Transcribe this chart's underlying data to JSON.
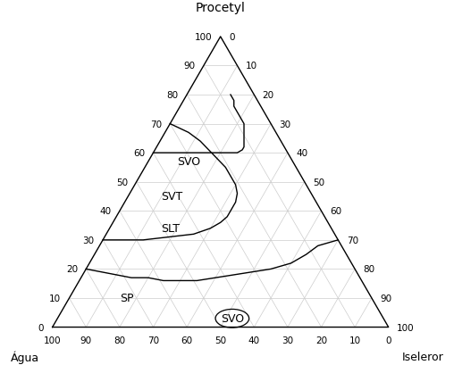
{
  "label_top": "Procetyl",
  "label_left": "Água",
  "label_right": "Iseleror",
  "grid_color": "#cccccc",
  "fontsize_ticks": 7.5,
  "fontsize_region": 9,
  "fontsize_axlabel": 9,
  "fontsize_title": 10,
  "curve_SLT_SVT": [
    [
      30,
      70,
      0
    ],
    [
      30,
      65,
      5
    ],
    [
      30,
      58,
      12
    ],
    [
      31,
      50,
      19
    ],
    [
      32,
      42,
      26
    ],
    [
      34,
      36,
      30
    ],
    [
      36,
      32,
      32
    ],
    [
      38,
      29,
      33
    ],
    [
      40,
      27,
      33
    ],
    [
      43,
      24,
      33
    ],
    [
      46,
      22,
      32
    ],
    [
      49,
      21,
      30
    ],
    [
      52,
      21,
      27
    ],
    [
      55,
      21,
      24
    ],
    [
      58,
      22,
      20
    ],
    [
      61,
      23,
      16
    ],
    [
      64,
      24,
      12
    ],
    [
      67,
      26,
      7
    ],
    [
      70,
      30,
      0
    ]
  ],
  "curve_SVT_SVO": [
    [
      60,
      40,
      0
    ],
    [
      60,
      36,
      4
    ],
    [
      60,
      32,
      8
    ],
    [
      60,
      27,
      13
    ],
    [
      60,
      23,
      17
    ],
    [
      60,
      20,
      20
    ],
    [
      60,
      18,
      22
    ],
    [
      60,
      16,
      24
    ],
    [
      60,
      15,
      25
    ],
    [
      61,
      13,
      26
    ],
    [
      62,
      12,
      26
    ],
    [
      64,
      11,
      25
    ],
    [
      66,
      10,
      24
    ],
    [
      68,
      9,
      23
    ],
    [
      70,
      8,
      22
    ],
    [
      72,
      8,
      20
    ],
    [
      74,
      8,
      18
    ],
    [
      76,
      8,
      16
    ],
    [
      78,
      7,
      15
    ],
    [
      80,
      7,
      13
    ]
  ],
  "curve_SVO_SP": [
    [
      20,
      80,
      0
    ],
    [
      19,
      76,
      5
    ],
    [
      18,
      72,
      10
    ],
    [
      17,
      68,
      15
    ],
    [
      17,
      63,
      20
    ],
    [
      16,
      59,
      25
    ],
    [
      16,
      54,
      30
    ],
    [
      16,
      49,
      35
    ],
    [
      17,
      43,
      40
    ],
    [
      18,
      37,
      45
    ],
    [
      19,
      31,
      50
    ],
    [
      20,
      25,
      55
    ],
    [
      22,
      18,
      60
    ],
    [
      25,
      12,
      63
    ],
    [
      28,
      7,
      65
    ],
    [
      30,
      0,
      70
    ]
  ],
  "label_SLT_abc": [
    34,
    48,
    18
  ],
  "label_SVT_abc": [
    45,
    42,
    13
  ],
  "label_SVO_abc": [
    57,
    31,
    12
  ],
  "label_SP_abc": [
    10,
    73,
    17
  ],
  "label_SVO2_abc": [
    3,
    45,
    52
  ],
  "ticks_left_procetyl": [
    0,
    10,
    20,
    30,
    40,
    50,
    60,
    70,
    80,
    90,
    100
  ],
  "ticks_right_iseleror": [
    0,
    10,
    20,
    30,
    40,
    50,
    60,
    70,
    80,
    90,
    100
  ],
  "ticks_bottom_agua": [
    0,
    10,
    20,
    30,
    40,
    50,
    60,
    70,
    80,
    90,
    100
  ]
}
